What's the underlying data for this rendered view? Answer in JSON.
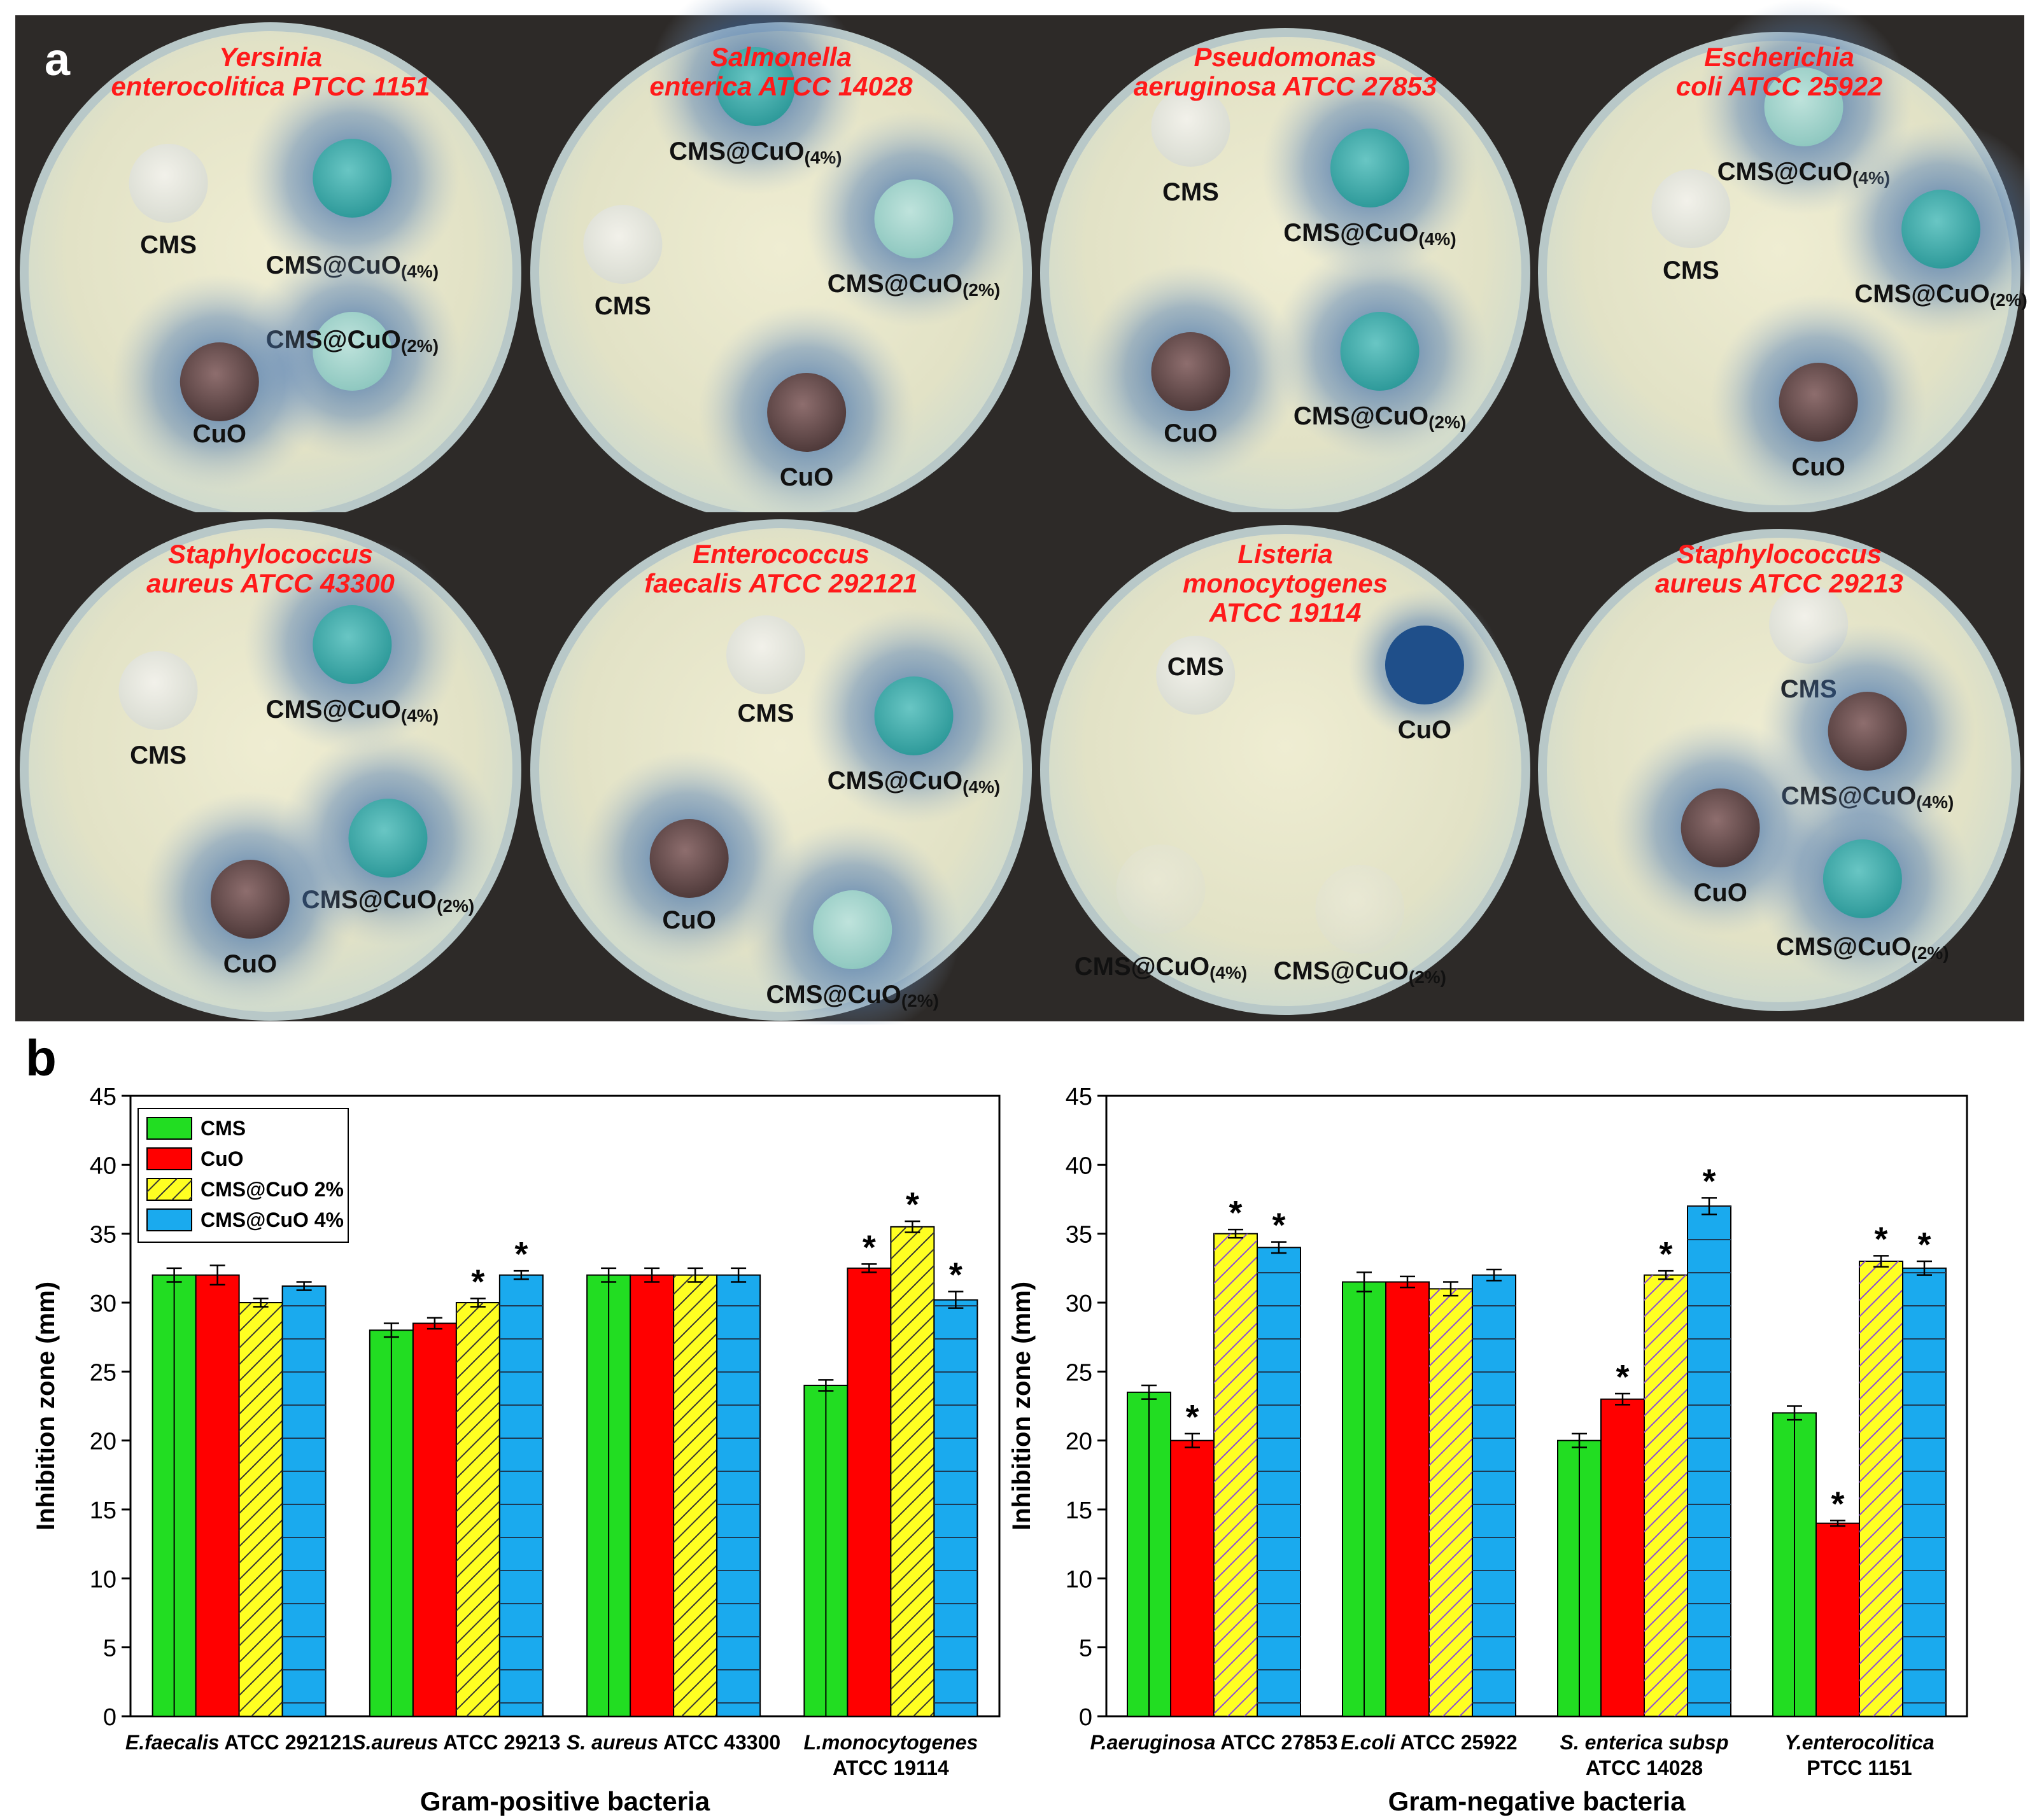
{
  "panel_a": {
    "letter": "a",
    "plates": [
      {
        "title_lines": [
          "Yersinia",
          "enterocolitica PTCC 1151"
        ],
        "labels": [
          "CMS",
          "CMS@CuO(4%)",
          "CMS@CuO(2%)",
          "CuO"
        ]
      },
      {
        "title_lines": [
          "Salmonella",
          "enterica ATCC 14028"
        ],
        "labels": [
          "CMS@CuO(4%)",
          "CMS",
          "CMS@CuO(2%)",
          "CuO"
        ]
      },
      {
        "title_lines": [
          "Pseudomonas",
          "aeruginosa ATCC 27853"
        ],
        "labels": [
          "CMS",
          "CMS@CuO(4%)",
          "CuO",
          "CMS@CuO(2%)"
        ]
      },
      {
        "title_lines": [
          "Escherichia",
          "coli ATCC 25922"
        ],
        "labels": [
          "CMS@CuO(4%)",
          "CMS",
          "CMS@CuO(2%)",
          "CuO"
        ]
      },
      {
        "title_lines": [
          "Staphylococcus",
          "aureus ATCC 43300"
        ],
        "labels": [
          "CMS",
          "CMS@CuO(4%)",
          "CMS@CuO(2%)",
          "CuO"
        ]
      },
      {
        "title_lines": [
          "Enterococcus",
          "faecalis ATCC 292121"
        ],
        "labels": [
          "CMS",
          "CMS@CuO(4%)",
          "CuO",
          "CMS@CuO(2%)"
        ]
      },
      {
        "title_lines": [
          "Listeria",
          "monocytogenes",
          "ATCC 19114"
        ],
        "labels": [
          "CMS",
          "CuO",
          "CMS@CuO(4%)",
          "CMS@CuO(2%)"
        ]
      },
      {
        "title_lines": [
          "Staphylococcus",
          "aureus ATCC 29213"
        ],
        "labels": [
          "CMS",
          "CMS@CuO(4%)",
          "CuO",
          "CMS@CuO(2%)"
        ]
      }
    ]
  },
  "panel_b": {
    "letter": "b"
  },
  "colors": {
    "CMS": "#22dd22",
    "CuO": "#ff0000",
    "CMS@CuO 2%": "#ffff22",
    "CMS@CuO 4%": "#1aaaee"
  },
  "chart_data": [
    {
      "type": "bar",
      "title": "",
      "xlabel": "Gram-positive bacteria",
      "ylabel": "Inhibition zone (mm)",
      "ylim": [
        0,
        45
      ],
      "yticks": [
        0,
        5,
        10,
        15,
        20,
        25,
        30,
        35,
        40,
        45
      ],
      "legend": [
        "CMS",
        "CuO",
        "CMS@CuO 2%",
        "CMS@CuO 4%"
      ],
      "legend_position": "top-left",
      "categories": [
        [
          "E.faecalis",
          " ATCC 292121"
        ],
        [
          "S.aureus",
          " ATCC 29213"
        ],
        [
          "S. aureus",
          " ATCC 43300"
        ],
        [
          "L.monocytogenes",
          "ATCC 19114"
        ]
      ],
      "series": [
        {
          "name": "CMS",
          "values": [
            32,
            28,
            32,
            24
          ],
          "errors": [
            0.5,
            0.5,
            0.5,
            0.4
          ],
          "sig": [
            false,
            false,
            false,
            false
          ]
        },
        {
          "name": "CuO",
          "values": [
            32,
            28.5,
            32,
            32.5
          ],
          "errors": [
            0.7,
            0.4,
            0.5,
            0.3
          ],
          "sig": [
            false,
            false,
            false,
            true
          ]
        },
        {
          "name": "CMS@CuO 2%",
          "values": [
            30,
            30,
            32,
            35.5
          ],
          "errors": [
            0.3,
            0.3,
            0.5,
            0.4
          ],
          "sig": [
            false,
            true,
            false,
            true
          ]
        },
        {
          "name": "CMS@CuO 4%",
          "values": [
            31.2,
            32,
            32,
            30.2
          ],
          "errors": [
            0.3,
            0.3,
            0.5,
            0.6
          ],
          "sig": [
            false,
            true,
            false,
            true
          ]
        }
      ]
    },
    {
      "type": "bar",
      "title": "",
      "xlabel": "Gram-negative bacteria",
      "ylabel": "Inhibition zone (mm)",
      "ylim": [
        0,
        45
      ],
      "yticks": [
        0,
        5,
        10,
        15,
        20,
        25,
        30,
        35,
        40,
        45
      ],
      "categories": [
        [
          "P.aeruginosa",
          " ATCC 27853"
        ],
        [
          "E.coli",
          " ATCC 25922"
        ],
        [
          "S. enterica subsp",
          "ATCC 14028"
        ],
        [
          "Y.enterocolitica",
          "PTCC 1151"
        ]
      ],
      "series": [
        {
          "name": "CMS",
          "values": [
            23.5,
            31.5,
            20,
            22
          ],
          "errors": [
            0.5,
            0.7,
            0.5,
            0.5
          ],
          "sig": [
            false,
            false,
            false,
            false
          ]
        },
        {
          "name": "CuO",
          "values": [
            20,
            31.5,
            23,
            14
          ],
          "errors": [
            0.5,
            0.4,
            0.4,
            0.2
          ],
          "sig": [
            true,
            false,
            true,
            true
          ]
        },
        {
          "name": "CMS@CuO 2%",
          "values": [
            35,
            31,
            32,
            33
          ],
          "errors": [
            0.3,
            0.5,
            0.3,
            0.4
          ],
          "sig": [
            true,
            false,
            true,
            true
          ]
        },
        {
          "name": "CMS@CuO 4%",
          "values": [
            34,
            32,
            37,
            32.5
          ],
          "errors": [
            0.4,
            0.4,
            0.6,
            0.5
          ],
          "sig": [
            true,
            false,
            true,
            true
          ]
        }
      ]
    }
  ]
}
